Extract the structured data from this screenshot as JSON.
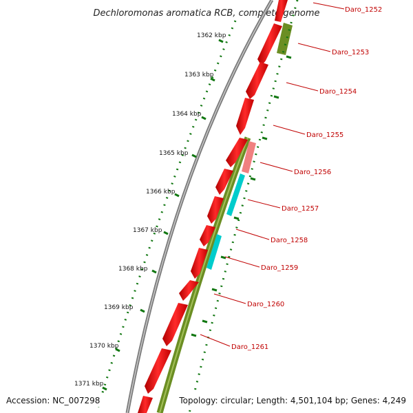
{
  "title": "Dechloromonas aromatica RCB, complete genome",
  "accession_text": "Accession: NC_007298",
  "summary_text": "Topology: circular; Length: 4,501,104 bp; Genes: 4,249",
  "scale": {
    "tick_unit": "kbp",
    "tick_labels": [
      "1362 kbp",
      "1363 kbp",
      "1364 kbp",
      "1365 kbp",
      "1366 kbp",
      "1367 kbp",
      "1368 kbp",
      "1369 kbp",
      "1370 kbp",
      "1371 kbp"
    ]
  },
  "gene_labels": [
    "Daro_1252",
    "Daro_1253",
    "Daro_1254",
    "Daro_1255",
    "Daro_1256",
    "Daro_1257",
    "Daro_1258",
    "Daro_1259",
    "Daro_1260",
    "Daro_1261"
  ],
  "colors": {
    "backbone": "#8a8a8a",
    "cds_forward": "#ff0000",
    "cds_pseudo": "#f08080",
    "track_reverse": "#6b8e23",
    "feature_cyan": "#00cccc",
    "scale_dots": "#117711",
    "label_text": "#c00000"
  }
}
